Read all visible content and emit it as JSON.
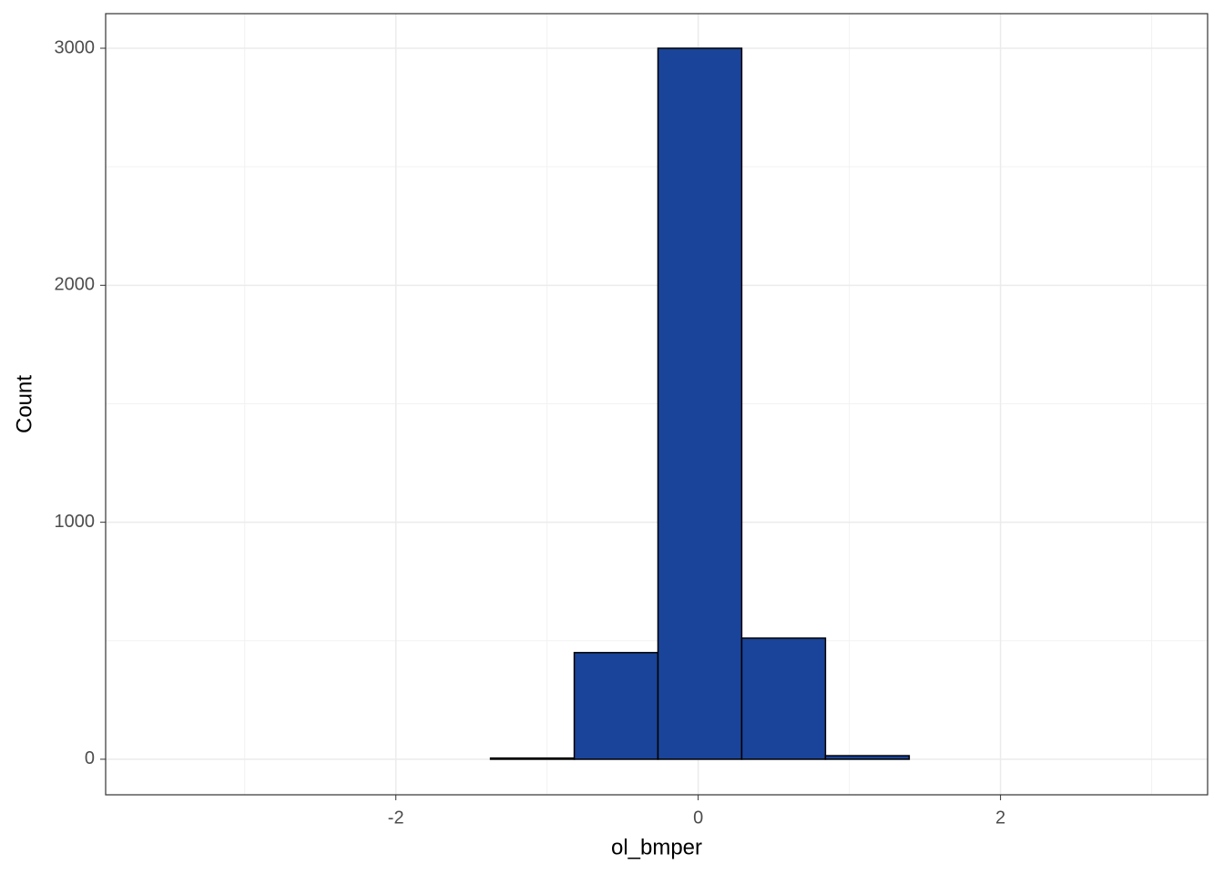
{
  "chart_data": {
    "type": "histogram",
    "x_label": "ol_bmper",
    "y_label": "Count",
    "bins": [
      -3.59,
      -3.036,
      -2.482,
      -1.928,
      -1.374,
      -0.82,
      -0.266,
      0.288,
      0.842,
      1.396,
      1.95,
      2.504,
      3.058
    ],
    "values": [
      0,
      0,
      0,
      0,
      5,
      450,
      3000,
      511,
      15,
      0,
      0,
      0
    ],
    "color": "#1a4499",
    "xlim": [
      -3.92,
      3.37
    ],
    "ylim": [
      -150,
      3146
    ],
    "xticks": [
      -2,
      0,
      2
    ],
    "yticks": [
      0,
      1000,
      2000,
      3000
    ],
    "xminor": [
      -3,
      -1,
      1,
      3
    ],
    "yminor": [
      500,
      1500,
      2500
    ],
    "grid": true
  }
}
